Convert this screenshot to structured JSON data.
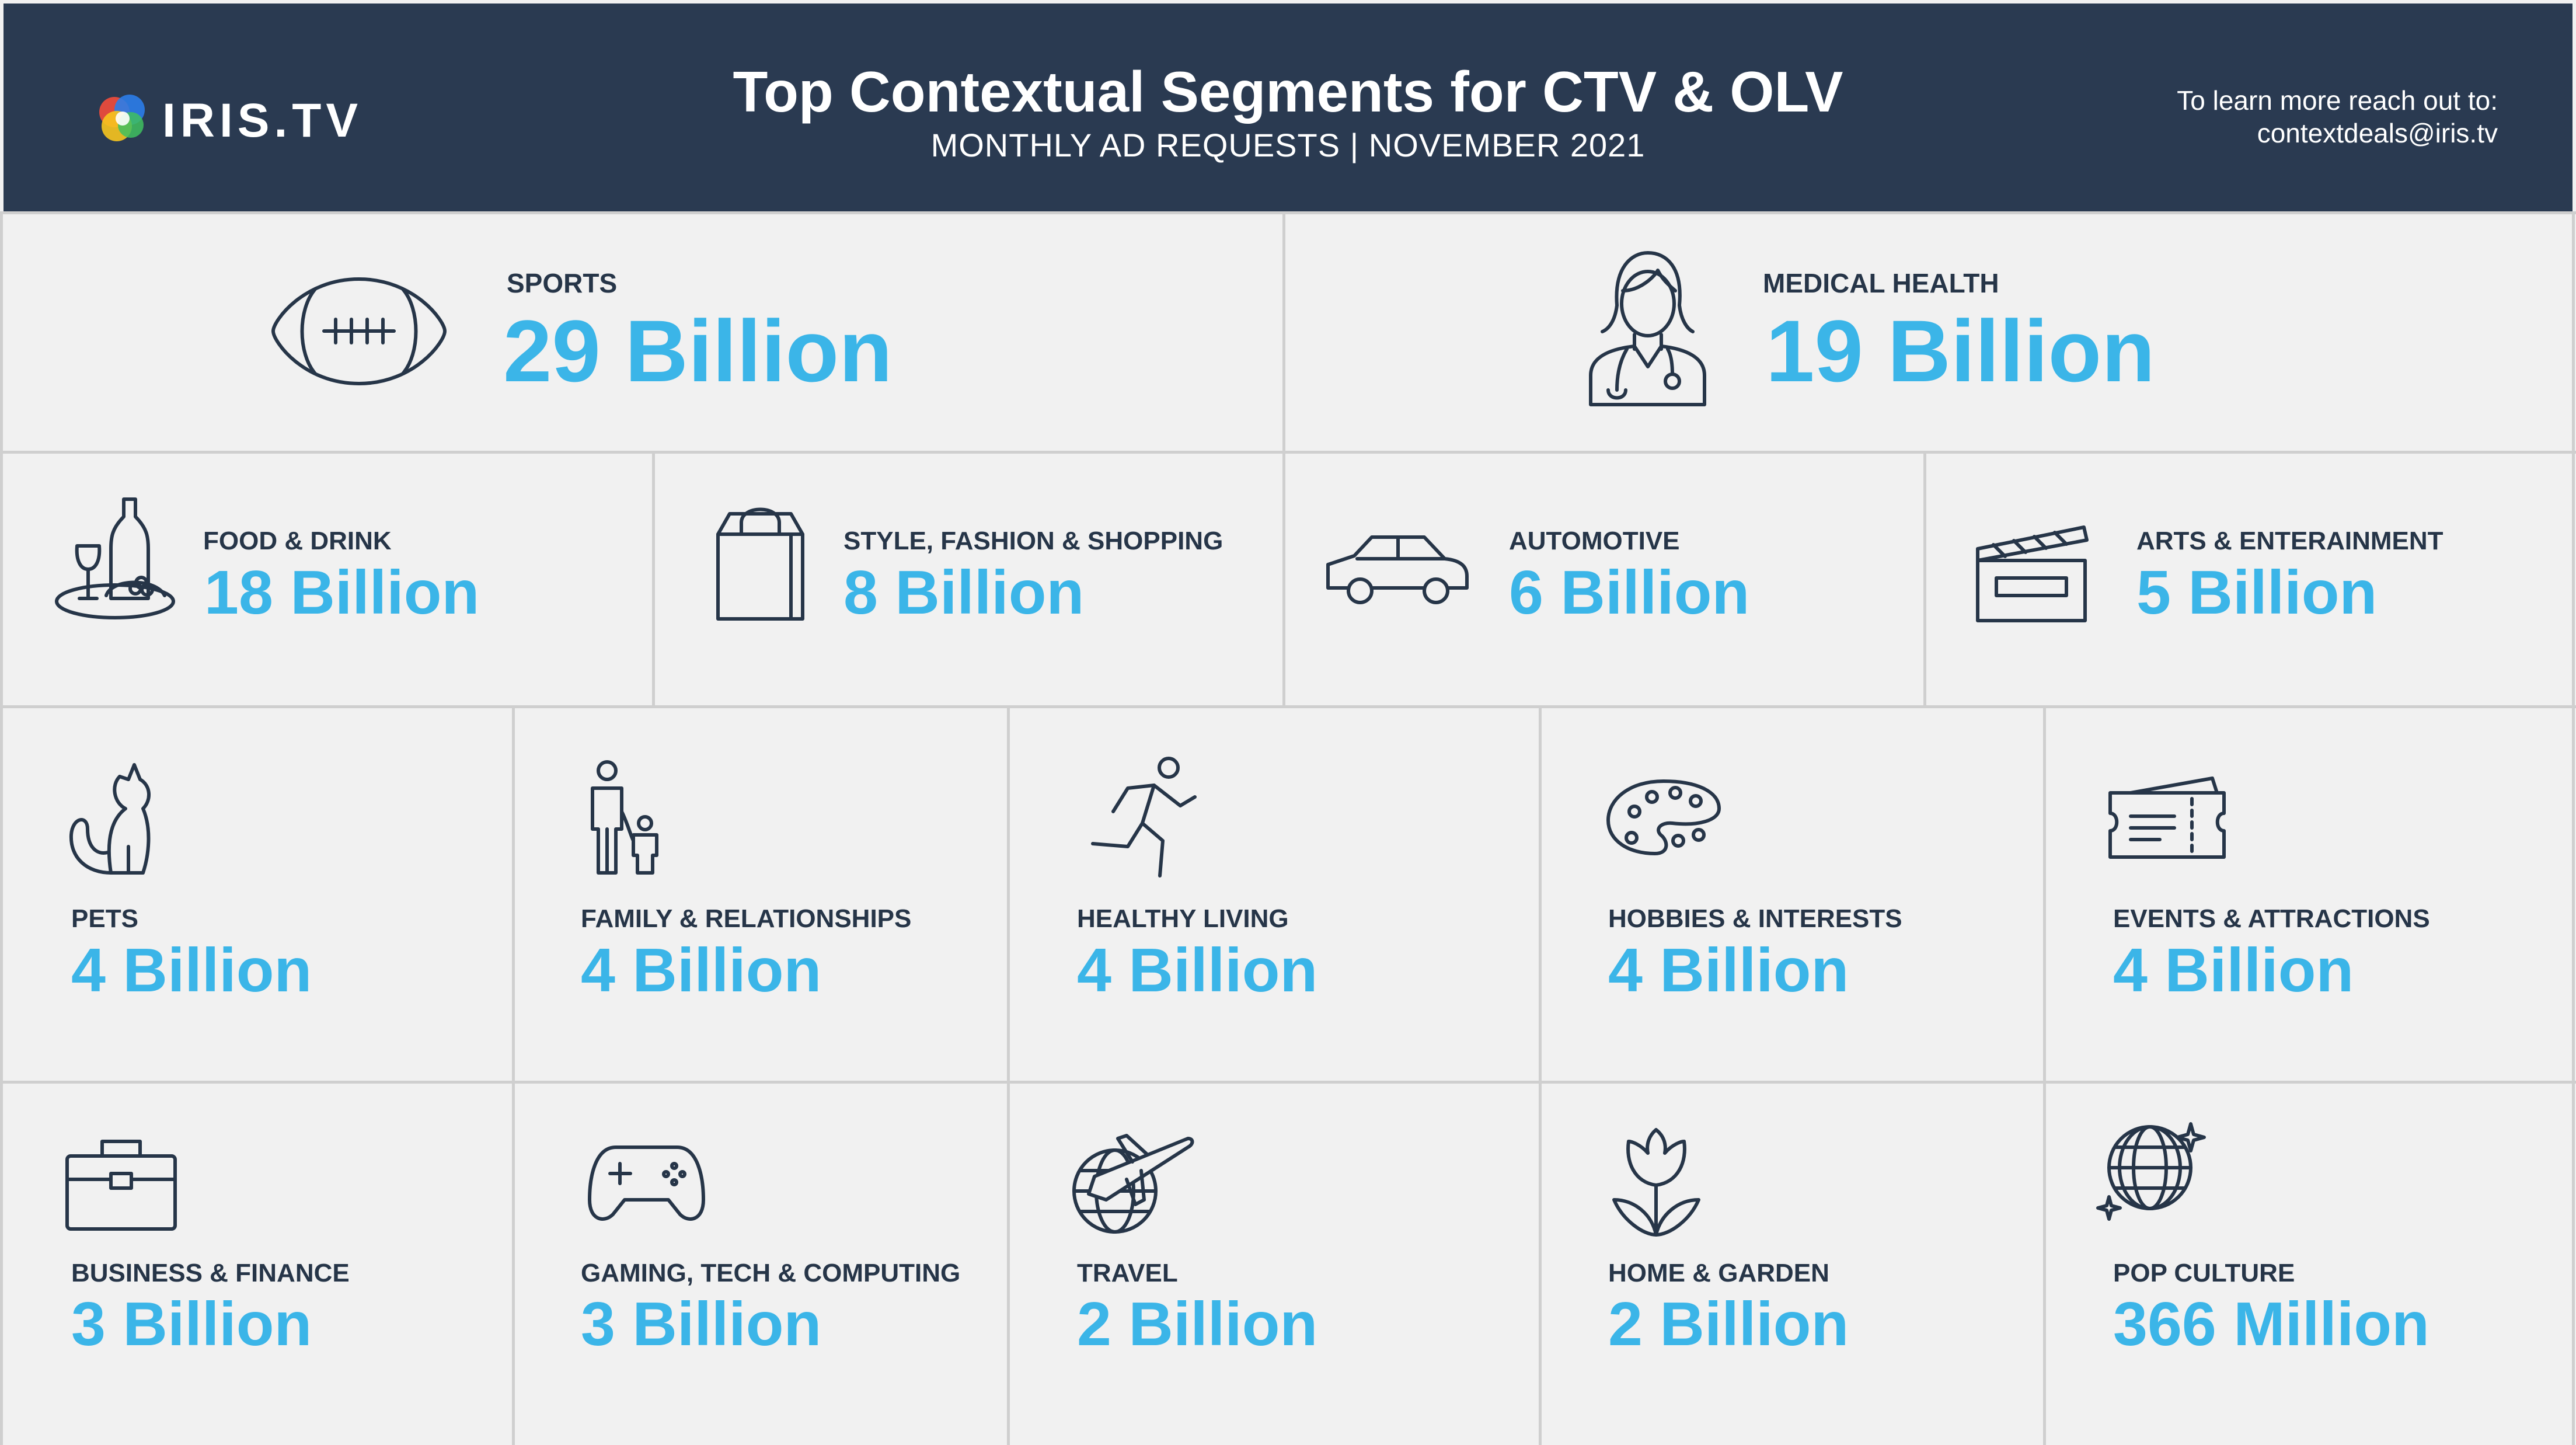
{
  "brand": {
    "name": "IRIS.TV"
  },
  "header": {
    "title": "Top Contextual Segments for CTV & OLV",
    "subtitle": "MONTHLY AD REQUESTS | NOVEMBER 2021",
    "contact_line1": "To learn more reach out to:",
    "contact_line2": "contextdeals@iris.tv"
  },
  "colors": {
    "header_bg": "#2a3a51",
    "accent": "#3bb5e8",
    "text": "#263548",
    "cell_bg": "#f1f1f1",
    "grid": "#cfcfcf"
  },
  "segments": [
    {
      "label": "SPORTS",
      "value": "29 Billion",
      "icon": "football-icon"
    },
    {
      "label": "MEDICAL HEALTH",
      "value": "19 Billion",
      "icon": "doctor-icon"
    },
    {
      "label": "FOOD & DRINK",
      "value": "18 Billion",
      "icon": "wine-bottle-icon"
    },
    {
      "label": "STYLE, FASHION & SHOPPING",
      "value": "8 Billion",
      "icon": "shopping-bag-icon"
    },
    {
      "label": "AUTOMOTIVE",
      "value": "6 Billion",
      "icon": "car-icon"
    },
    {
      "label": "ARTS & ENTERAINMENT",
      "value": "5 Billion",
      "icon": "clapperboard-icon"
    },
    {
      "label": "PETS",
      "value": "4 Billion",
      "icon": "cat-icon"
    },
    {
      "label": "FAMILY & RELATIONSHIPS",
      "value": "4 Billion",
      "icon": "family-icon"
    },
    {
      "label": "HEALTHY LIVING",
      "value": "4 Billion",
      "icon": "runner-icon"
    },
    {
      "label": "HOBBIES & INTERESTS",
      "value": "4 Billion",
      "icon": "palette-icon"
    },
    {
      "label": "EVENTS & ATTRACTIONS",
      "value": "4 Billion",
      "icon": "ticket-icon"
    },
    {
      "label": "BUSINESS & FINANCE",
      "value": "3 Billion",
      "icon": "briefcase-icon"
    },
    {
      "label": "GAMING, TECH & COMPUTING",
      "value": "3 Billion",
      "icon": "gamepad-icon"
    },
    {
      "label": "TRAVEL",
      "value": "2 Billion",
      "icon": "globe-plane-icon"
    },
    {
      "label": "HOME & GARDEN",
      "value": "2 Billion",
      "icon": "tulip-icon"
    },
    {
      "label": "POP CULTURE",
      "value": "366 Million",
      "icon": "disco-ball-icon"
    }
  ]
}
